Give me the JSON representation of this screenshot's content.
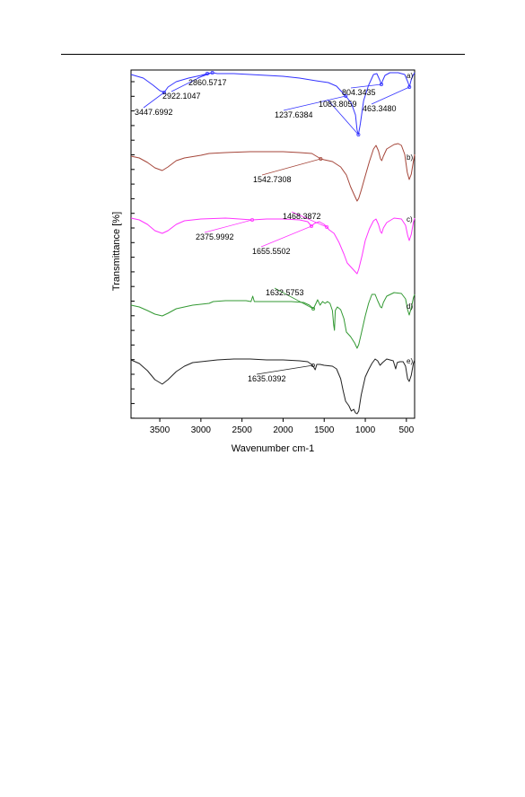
{
  "chart_data": {
    "type": "line",
    "xlabel": "Wavenumber cm-1",
    "ylabel": "Transmittance [%]",
    "xlim": [
      3850,
      400
    ],
    "x_reversed": true,
    "xticks": [
      3500,
      3000,
      2500,
      2000,
      1500,
      1000,
      500
    ],
    "grid": false,
    "legend": "none",
    "series": [
      {
        "name": "a)",
        "color": "#3333ff",
        "points": [
          [
            3850,
            83
          ],
          [
            3700,
            87
          ],
          [
            3580,
            95
          ],
          [
            3500,
            101
          ],
          [
            3447,
            103
          ],
          [
            3400,
            97
          ],
          [
            3300,
            91
          ],
          [
            3150,
            87
          ],
          [
            3000,
            84
          ],
          [
            2922,
            82
          ],
          [
            2860,
            81
          ],
          [
            2800,
            82
          ],
          [
            2600,
            82
          ],
          [
            2400,
            83
          ],
          [
            2200,
            84
          ],
          [
            2000,
            85
          ],
          [
            1800,
            87
          ],
          [
            1600,
            90
          ],
          [
            1450,
            92
          ],
          [
            1350,
            96
          ],
          [
            1300,
            101
          ],
          [
            1237,
            107
          ],
          [
            1170,
            115
          ],
          [
            1120,
            128
          ],
          [
            1100,
            145
          ],
          [
            1083,
            150
          ],
          [
            1060,
            138
          ],
          [
            1020,
            112
          ],
          [
            960,
            95
          ],
          [
            900,
            83
          ],
          [
            860,
            82
          ],
          [
            820,
            90
          ],
          [
            804,
            94
          ],
          [
            790,
            90
          ],
          [
            760,
            84
          ],
          [
            700,
            81
          ],
          [
            600,
            81
          ],
          [
            520,
            83
          ],
          [
            480,
            92
          ],
          [
            463,
            97
          ],
          [
            445,
            90
          ],
          [
            420,
            84
          ],
          [
            400,
            81
          ]
        ],
        "annotations": [
          {
            "x": 3447.6992,
            "label": "3447.6992"
          },
          {
            "x": 2922.1047,
            "label": "2922.1047"
          },
          {
            "x": 2860.5717,
            "label": "2860.5717"
          },
          {
            "x": 1237.6384,
            "label": "1237.6384"
          },
          {
            "x": 1083.8059,
            "label": "1083.8059"
          },
          {
            "x": 804.3435,
            "label": "804.3435"
          },
          {
            "x": 463.348,
            "label": "463.3480"
          }
        ]
      },
      {
        "name": "b)",
        "color": "#a5463a",
        "points": [
          [
            3850,
            174
          ],
          [
            3750,
            176
          ],
          [
            3650,
            181
          ],
          [
            3560,
            187
          ],
          [
            3470,
            190
          ],
          [
            3400,
            186
          ],
          [
            3300,
            179
          ],
          [
            3200,
            176
          ],
          [
            3000,
            173
          ],
          [
            2900,
            171
          ],
          [
            2700,
            170
          ],
          [
            2400,
            169
          ],
          [
            2000,
            169
          ],
          [
            1800,
            170
          ],
          [
            1650,
            171
          ],
          [
            1542,
            177
          ],
          [
            1500,
            178
          ],
          [
            1400,
            180
          ],
          [
            1300,
            186
          ],
          [
            1230,
            195
          ],
          [
            1180,
            208
          ],
          [
            1130,
            218
          ],
          [
            1100,
            224
          ],
          [
            1080,
            221
          ],
          [
            1050,
            212
          ],
          [
            1000,
            196
          ],
          [
            950,
            180
          ],
          [
            900,
            166
          ],
          [
            870,
            162
          ],
          [
            840,
            168
          ],
          [
            815,
            177
          ],
          [
            800,
            179
          ],
          [
            780,
            174
          ],
          [
            740,
            166
          ],
          [
            650,
            161
          ],
          [
            600,
            160
          ],
          [
            560,
            162
          ],
          [
            520,
            172
          ],
          [
            490,
            192
          ],
          [
            465,
            200
          ],
          [
            440,
            194
          ],
          [
            415,
            180
          ],
          [
            400,
            172
          ]
        ],
        "annotations": [
          {
            "x": 1542.7308,
            "label": "1542.7308"
          }
        ]
      },
      {
        "name": "c)",
        "color": "#ff33ff",
        "points": [
          [
            3850,
            243
          ],
          [
            3750,
            245
          ],
          [
            3650,
            250
          ],
          [
            3560,
            257
          ],
          [
            3470,
            260
          ],
          [
            3400,
            257
          ],
          [
            3300,
            250
          ],
          [
            3200,
            246
          ],
          [
            3000,
            244
          ],
          [
            2700,
            243
          ],
          [
            2375,
            245
          ],
          [
            2200,
            244
          ],
          [
            2000,
            244
          ],
          [
            1800,
            245
          ],
          [
            1700,
            247
          ],
          [
            1655,
            252
          ],
          [
            1620,
            249
          ],
          [
            1560,
            247
          ],
          [
            1500,
            250
          ],
          [
            1468,
            253
          ],
          [
            1440,
            256
          ],
          [
            1380,
            260
          ],
          [
            1320,
            270
          ],
          [
            1260,
            283
          ],
          [
            1220,
            293
          ],
          [
            1150,
            300
          ],
          [
            1100,
            305
          ],
          [
            1080,
            300
          ],
          [
            1040,
            285
          ],
          [
            1000,
            268
          ],
          [
            950,
            255
          ],
          [
            900,
            246
          ],
          [
            870,
            244
          ],
          [
            840,
            250
          ],
          [
            815,
            258
          ],
          [
            800,
            260
          ],
          [
            780,
            254
          ],
          [
            740,
            248
          ],
          [
            650,
            243
          ],
          [
            560,
            244
          ],
          [
            510,
            251
          ],
          [
            485,
            262
          ],
          [
            465,
            268
          ],
          [
            440,
            261
          ],
          [
            415,
            248
          ],
          [
            400,
            243
          ]
        ],
        "annotations": [
          {
            "x": 2375.9992,
            "label": "2375.9992"
          },
          {
            "x": 1655.5502,
            "label": "1655.5502"
          },
          {
            "x": 1468.3872,
            "label": "1468.3872"
          }
        ]
      },
      {
        "name": "d)",
        "color": "#339933",
        "points": [
          [
            3850,
            340
          ],
          [
            3750,
            342
          ],
          [
            3650,
            346
          ],
          [
            3560,
            350
          ],
          [
            3470,
            352
          ],
          [
            3400,
            349
          ],
          [
            3300,
            344
          ],
          [
            3200,
            342
          ],
          [
            3100,
            340
          ],
          [
            3000,
            339
          ],
          [
            2900,
            338
          ],
          [
            2850,
            336
          ],
          [
            2700,
            335
          ],
          [
            2450,
            335
          ],
          [
            2390,
            336
          ],
          [
            2370,
            330
          ],
          [
            2350,
            336
          ],
          [
            2100,
            336
          ],
          [
            1900,
            336
          ],
          [
            1750,
            337
          ],
          [
            1680,
            340
          ],
          [
            1632,
            344
          ],
          [
            1600,
            338
          ],
          [
            1580,
            334
          ],
          [
            1550,
            340
          ],
          [
            1520,
            336
          ],
          [
            1490,
            338
          ],
          [
            1460,
            336
          ],
          [
            1430,
            338
          ],
          [
            1400,
            346
          ],
          [
            1385,
            362
          ],
          [
            1375,
            368
          ],
          [
            1365,
            346
          ],
          [
            1340,
            342
          ],
          [
            1300,
            345
          ],
          [
            1260,
            355
          ],
          [
            1230,
            370
          ],
          [
            1180,
            375
          ],
          [
            1130,
            382
          ],
          [
            1100,
            388
          ],
          [
            1080,
            384
          ],
          [
            1050,
            372
          ],
          [
            1000,
            352
          ],
          [
            960,
            338
          ],
          [
            920,
            328
          ],
          [
            880,
            328
          ],
          [
            850,
            335
          ],
          [
            815,
            342
          ],
          [
            800,
            343
          ],
          [
            780,
            337
          ],
          [
            740,
            330
          ],
          [
            650,
            326
          ],
          [
            560,
            327
          ],
          [
            510,
            333
          ],
          [
            485,
            345
          ],
          [
            465,
            351
          ],
          [
            440,
            343
          ],
          [
            415,
            332
          ],
          [
            400,
            328
          ]
        ],
        "annotations": [
          {
            "x": 1632.5753,
            "label": "1632.5753"
          }
        ]
      },
      {
        "name": "e)",
        "color": "#222222",
        "points": [
          [
            3850,
            401
          ],
          [
            3750,
            405
          ],
          [
            3650,
            413
          ],
          [
            3560,
            423
          ],
          [
            3470,
            428
          ],
          [
            3400,
            423
          ],
          [
            3300,
            414
          ],
          [
            3200,
            408
          ],
          [
            3100,
            404
          ],
          [
            3000,
            403
          ],
          [
            2800,
            401
          ],
          [
            2600,
            400
          ],
          [
            2400,
            400
          ],
          [
            2200,
            401
          ],
          [
            2000,
            401
          ],
          [
            1800,
            402
          ],
          [
            1700,
            403
          ],
          [
            1640,
            407
          ],
          [
            1610,
            412
          ],
          [
            1590,
            406
          ],
          [
            1550,
            406
          ],
          [
            1500,
            407
          ],
          [
            1400,
            408
          ],
          [
            1350,
            411
          ],
          [
            1300,
            422
          ],
          [
            1270,
            435
          ],
          [
            1240,
            447
          ],
          [
            1200,
            452
          ],
          [
            1170,
            458
          ],
          [
            1140,
            456
          ],
          [
            1120,
            460
          ],
          [
            1100,
            461
          ],
          [
            1080,
            458
          ],
          [
            1050,
            440
          ],
          [
            1000,
            420
          ],
          [
            960,
            412
          ],
          [
            920,
            405
          ],
          [
            880,
            400
          ],
          [
            850,
            402
          ],
          [
            820,
            407
          ],
          [
            790,
            404
          ],
          [
            740,
            400
          ],
          [
            660,
            402
          ],
          [
            630,
            411
          ],
          [
            612,
            404
          ],
          [
            580,
            403
          ],
          [
            540,
            403
          ],
          [
            510,
            408
          ],
          [
            485,
            422
          ],
          [
            465,
            425
          ],
          [
            440,
            418
          ],
          [
            415,
            405
          ],
          [
            400,
            401
          ]
        ],
        "annotations": [
          {
            "x": 1635.0392,
            "label": "1635.0392"
          }
        ]
      }
    ]
  }
}
